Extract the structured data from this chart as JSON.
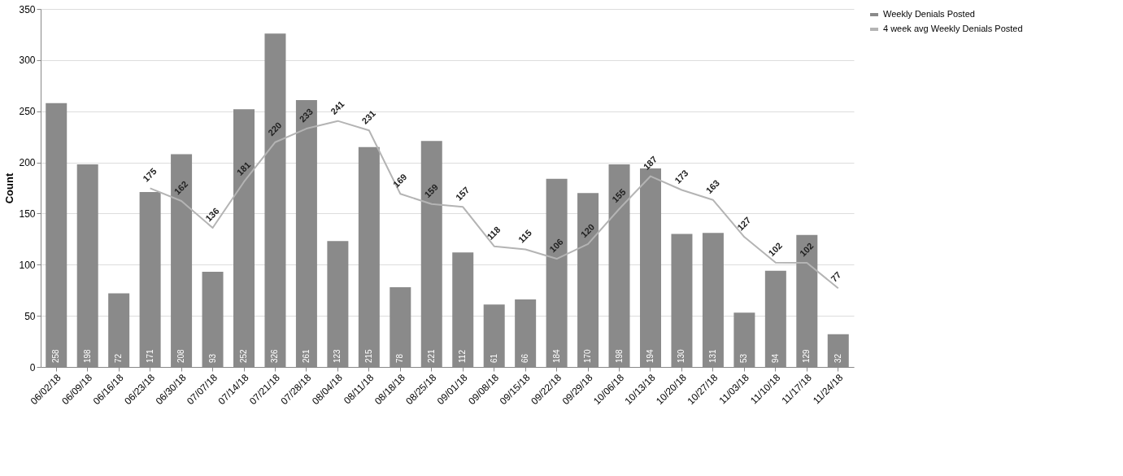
{
  "chart_data": {
    "type": "bar",
    "ylabel": "Count",
    "categories": [
      "06/02/18",
      "06/09/18",
      "06/16/18",
      "06/23/18",
      "06/30/18",
      "07/07/18",
      "07/14/18",
      "07/21/18",
      "07/28/18",
      "08/04/18",
      "08/11/18",
      "08/18/18",
      "08/25/18",
      "09/01/18",
      "09/08/18",
      "09/15/18",
      "09/22/18",
      "09/29/18",
      "10/06/18",
      "10/13/18",
      "10/20/18",
      "10/27/18",
      "11/03/18",
      "11/10/18",
      "11/17/18",
      "11/24/18"
    ],
    "series": [
      {
        "name": "Weekly Denials Posted",
        "color": "#8a8a8a",
        "values": [
          258,
          198,
          72,
          171,
          208,
          93,
          252,
          326,
          261,
          123,
          215,
          78,
          221,
          112,
          61,
          66,
          184,
          170,
          198,
          194,
          130,
          131,
          53,
          94,
          129,
          32
        ],
        "value_labels": [
          "258",
          "198",
          "72",
          "171",
          "208",
          "93",
          "252",
          "326",
          "261",
          "123",
          "215",
          "78",
          "221",
          "112",
          "61",
          "66",
          "184",
          "170",
          "198",
          "194",
          "130",
          "131",
          "53",
          "94",
          "129",
          "32"
        ]
      },
      {
        "name": "4 week avg Weekly Denials Posted",
        "type": "line",
        "color": "#b4b4b4",
        "values": [
          null,
          null,
          null,
          174.75,
          162.25,
          136,
          181,
          219.75,
          233,
          240.5,
          231.25,
          169.25,
          159.25,
          156.5,
          118,
          115,
          105.75,
          120.25,
          154.5,
          186.5,
          173,
          163.25,
          127,
          102,
          101.75,
          77
        ],
        "value_labels": [
          null,
          null,
          null,
          "175",
          "162",
          "136",
          "181",
          "220",
          "233",
          "241",
          "231",
          "169",
          "159",
          "157",
          "118",
          "115",
          "106",
          "120",
          "155",
          "187",
          "173",
          "163",
          "127",
          "102",
          "102",
          "77"
        ]
      }
    ],
    "ylim": [
      0,
      350
    ],
    "yticks": [
      0,
      50,
      100,
      150,
      200,
      250,
      300,
      350
    ],
    "grid": "y",
    "legend": "top right"
  }
}
